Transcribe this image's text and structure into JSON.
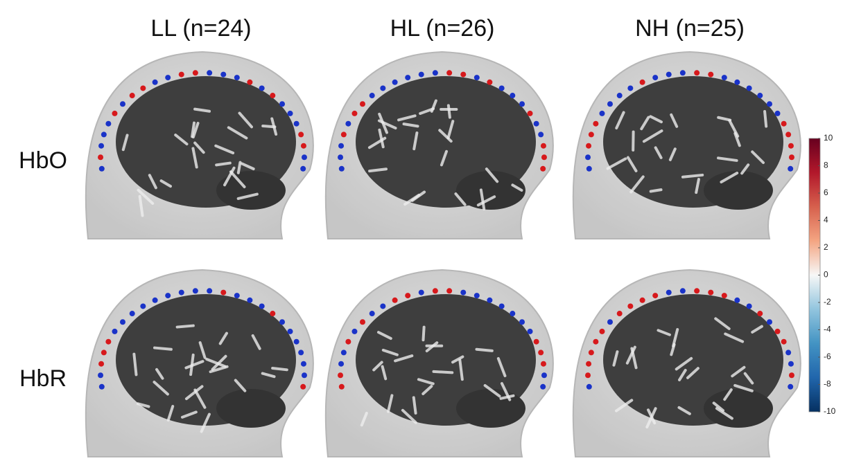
{
  "columns": [
    "LL (n=24)",
    "HL (n=26)",
    "NH (n=25)"
  ],
  "rows": [
    "HbO",
    "HbR"
  ],
  "colorbar": {
    "lim": [
      -10,
      10
    ],
    "ticks": [
      10,
      8,
      6,
      4,
      2,
      0,
      -2,
      -4,
      -6,
      -8,
      -10
    ],
    "colors": [
      "#053061",
      "#2166ac",
      "#4393c3",
      "#92c5de",
      "#f7f7f7",
      "#f4a582",
      "#d6604d",
      "#b2182b",
      "#67001f"
    ]
  }
}
